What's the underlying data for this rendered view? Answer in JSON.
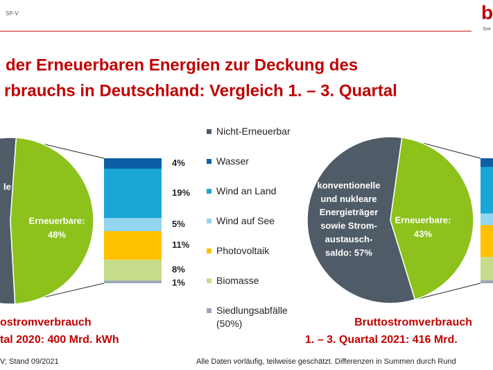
{
  "header": {
    "tag": "SP-V",
    "logo": "b",
    "logo_sub": "Ene",
    "title": [
      "der Erneuerbaren Energien zur Deckung des",
      "rbrauchs in Deutschland: Vergleich 1. – 3. Quartal"
    ]
  },
  "legend": [
    {
      "name": "Nicht-Erneuerbar",
      "color": "#4f5b66"
    },
    {
      "name": "Wasser",
      "color": "#0b5fa5"
    },
    {
      "name": "Wind an Land",
      "color": "#1aa7d8"
    },
    {
      "name": "Wind auf See",
      "color": "#93d4ee"
    },
    {
      "name": "Photovoltaik",
      "color": "#ffc000"
    },
    {
      "name": "Biomasse",
      "color": "#c5dc8a"
    },
    {
      "name": "Siedlungsabfälle (50%)",
      "color": "#9aa6b8"
    }
  ],
  "chart_data": [
    {
      "type": "pie-of-bar",
      "other": {
        "label_lines": [
          "le"
        ],
        "value": 52
      },
      "renewable": {
        "label": "Erneuerbare:",
        "value": 48,
        "value_label": "48%",
        "color": "#8cc21b"
      },
      "bar": {
        "values": [
          4,
          19,
          5,
          11,
          8,
          1
        ],
        "value_labels": [
          "4%",
          "19%",
          "5%",
          "11%",
          "8%",
          "1%"
        ]
      },
      "caption": [
        "ostromverbrauch",
        "tal 2020: 400 Mrd. kWh"
      ]
    },
    {
      "type": "pie-of-bar",
      "other": {
        "label_lines": [
          "konventionelle",
          "und nukleare",
          "Energieträger",
          "sowie Strom-",
          "austausch-",
          "saldo: 57%"
        ],
        "value": 57
      },
      "renewable": {
        "label": "Erneuerbare:",
        "value": 43,
        "value_label": "43%",
        "color": "#8cc21b"
      },
      "bar": {
        "values": [
          3,
          16,
          4,
          11,
          8,
          1
        ]
      },
      "caption": [
        "Bruttostromverbrauch",
        "1. – 3. Quartal 2021: 416 Mrd."
      ]
    }
  ],
  "footer": {
    "left": "V; Stand 09/2021",
    "right": "Alle Daten vorläufig, teilweise geschätzt. Differenzen in Summen durch Rund"
  }
}
